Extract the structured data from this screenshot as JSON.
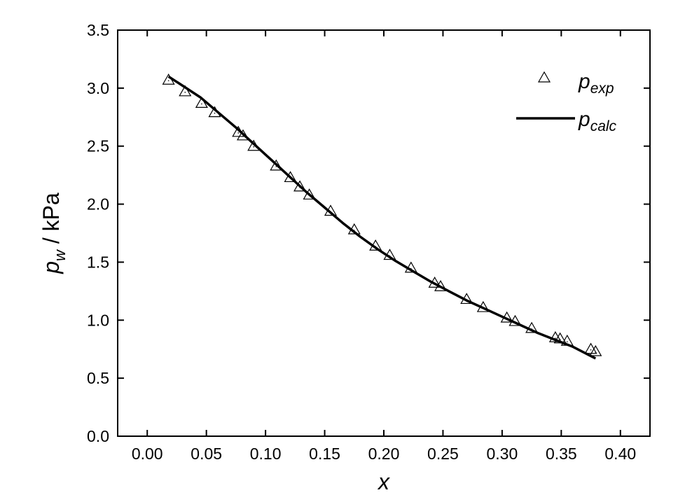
{
  "chart_data": {
    "type": "scatter",
    "title": "",
    "xlabel": "x",
    "ylabel": {
      "main": "p",
      "sub": "w",
      "unit": " / kPa"
    },
    "xlim": [
      -0.025,
      0.425
    ],
    "ylim": [
      0.0,
      3.5
    ],
    "x_ticks": [
      "0.00",
      "0.05",
      "0.10",
      "0.15",
      "0.20",
      "0.25",
      "0.30",
      "0.35",
      "0.40"
    ],
    "y_ticks": [
      "0.0",
      "0.5",
      "1.0",
      "1.5",
      "2.0",
      "2.5",
      "3.0",
      "3.5"
    ],
    "grid": false,
    "legend_position": "top-right",
    "series": [
      {
        "name": "p_exp",
        "legend": {
          "main": "p",
          "sub": "exp"
        },
        "kind": "scatter",
        "marker": "open-triangle",
        "x": [
          0.018,
          0.032,
          0.046,
          0.057,
          0.077,
          0.081,
          0.09,
          0.109,
          0.121,
          0.129,
          0.137,
          0.155,
          0.175,
          0.193,
          0.205,
          0.223,
          0.243,
          0.248,
          0.27,
          0.284,
          0.304,
          0.311,
          0.325,
          0.345,
          0.349,
          0.355,
          0.375,
          0.379
        ],
        "y": [
          3.07,
          2.97,
          2.87,
          2.79,
          2.62,
          2.59,
          2.5,
          2.33,
          2.23,
          2.15,
          2.08,
          1.94,
          1.78,
          1.64,
          1.56,
          1.45,
          1.32,
          1.29,
          1.18,
          1.11,
          1.02,
          0.99,
          0.93,
          0.85,
          0.84,
          0.82,
          0.75,
          0.73
        ]
      },
      {
        "name": "p_calc",
        "legend": {
          "main": "p",
          "sub": "calc"
        },
        "kind": "line",
        "x": [
          0.018,
          0.03,
          0.045,
          0.06,
          0.075,
          0.09,
          0.105,
          0.12,
          0.135,
          0.15,
          0.165,
          0.18,
          0.195,
          0.21,
          0.225,
          0.24,
          0.255,
          0.27,
          0.285,
          0.3,
          0.315,
          0.33,
          0.345,
          0.36,
          0.379
        ],
        "y": [
          3.1,
          3.02,
          2.92,
          2.79,
          2.66,
          2.52,
          2.38,
          2.24,
          2.1,
          1.97,
          1.84,
          1.72,
          1.61,
          1.51,
          1.42,
          1.33,
          1.25,
          1.17,
          1.1,
          1.03,
          0.96,
          0.89,
          0.83,
          0.77,
          0.67
        ]
      }
    ]
  }
}
